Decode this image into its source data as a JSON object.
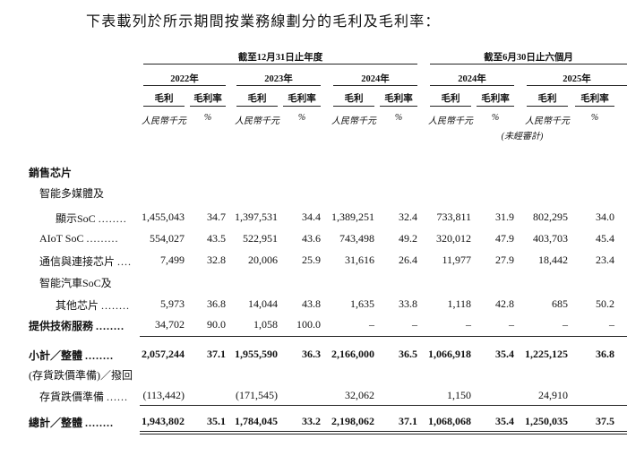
{
  "intro": "下表載列於所示期間按業務線劃分的毛利及毛利率：",
  "header": {
    "group1": "截至12月31日止年度",
    "group2": "截至6月30日止六個月",
    "years": [
      "2022年",
      "2023年",
      "2024年",
      "2024年",
      "2025年"
    ],
    "gp_label": "毛利",
    "margin_label": "毛利率",
    "unit_rmb": "人民幣千元",
    "unit_pct": "%",
    "unaudited": "(未經審計)"
  },
  "rows": {
    "sales_chips": {
      "label": "銷售芯片"
    },
    "smart_media": {
      "label1": "智能多媒體及",
      "label2": "顯示SoC",
      "dots": "........",
      "values": [
        "1,455,043",
        "34.7",
        "1,397,531",
        "34.4",
        "1,389,251",
        "32.4",
        "733,811",
        "31.9",
        "802,295",
        "34.0"
      ]
    },
    "aiot": {
      "label": "AIoT SoC",
      "dots": ".........",
      "values": [
        "554,027",
        "43.5",
        "522,951",
        "43.6",
        "743,498",
        "49.2",
        "320,012",
        "47.9",
        "403,703",
        "45.4"
      ]
    },
    "comm": {
      "label": "通信與連接芯片",
      "dots": "....",
      "values": [
        "7,499",
        "32.8",
        "20,006",
        "25.9",
        "31,616",
        "26.4",
        "11,977",
        "27.9",
        "18,442",
        "23.4"
      ]
    },
    "auto": {
      "label1": "智能汽車SoC及",
      "label2": "其他芯片",
      "dots": "........",
      "values": [
        "5,973",
        "36.8",
        "14,044",
        "43.8",
        "1,635",
        "33.8",
        "1,118",
        "42.8",
        "685",
        "50.2"
      ]
    },
    "tech": {
      "label": "提供技術服務",
      "dots": "........",
      "values": [
        "34,702",
        "90.0",
        "1,058",
        "100.0",
        "–",
        "–",
        "–",
        "–",
        "–",
        "–"
      ]
    },
    "subtotal": {
      "label": "小計／整體",
      "dots": "........",
      "values": [
        "2,057,244",
        "37.1",
        "1,955,590",
        "36.3",
        "2,166,000",
        "36.5",
        "1,066,918",
        "35.4",
        "1,225,125",
        "36.8"
      ]
    },
    "inventory": {
      "label1": "(存貨跌價準備)／撥回",
      "label2": "存貨跌價準備",
      "dots": "......",
      "values": [
        "(113,442)",
        "",
        "(171,545)",
        "",
        "32,062",
        "",
        "1,150",
        "",
        "24,910",
        ""
      ]
    },
    "total": {
      "label": "總計／整體",
      "dots": "........",
      "values": [
        "1,943,802",
        "35.1",
        "1,784,045",
        "33.2",
        "2,198,062",
        "37.1",
        "1,068,068",
        "35.4",
        "1,250,035",
        "37.5"
      ]
    }
  }
}
